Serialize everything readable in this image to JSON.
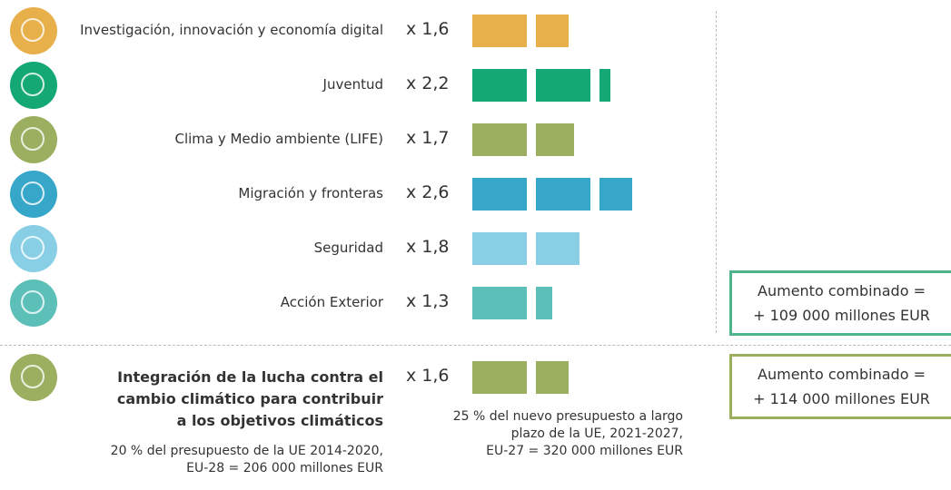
{
  "chart_data": [
    {
      "type": "bar",
      "categories": [
        "Investigación, innovación y economía digital",
        "Juventud",
        "Clima y Medio ambiente (LIFE)",
        "Migración y fronteras",
        "Seguridad",
        "Acción Exterior"
      ],
      "values": [
        1.6,
        2.2,
        1.7,
        2.6,
        1.8,
        1.3
      ],
      "value_labels": [
        "x 1,6",
        "x 2,2",
        "x 1,7",
        "x 2,6",
        "x 1,8",
        "x 1,3"
      ],
      "colors": [
        "#e8b04a",
        "#14a874",
        "#9cae60",
        "#36a7c8",
        "#88cfe6",
        "#5cbfb8"
      ],
      "annotation": [
        "Aumento combinado =",
        "+ 109 000 millones EUR"
      ],
      "annotation_color": "#4db48b"
    },
    {
      "type": "bar",
      "categories": [
        [
          "Integración de la lucha contra el",
          "cambio climático para contribuir",
          "a los objetivos climáticos"
        ]
      ],
      "values": [
        1.6
      ],
      "value_labels": [
        "x 1,6"
      ],
      "colors": [
        "#9cae60"
      ],
      "notes": [
        [
          "20 % del presupuesto de la UE 2014-2020,",
          "EU-28 = 206 000 millones EUR"
        ],
        [
          "25 % del nuevo presupuesto a largo",
          "plazo de la UE, 2021-2027,",
          "EU-27 = 320 000 millones EUR"
        ]
      ],
      "annotation": [
        "Aumento combinado =",
        "+ 114 000 millones EUR"
      ],
      "annotation_color": "#9cae60"
    }
  ]
}
